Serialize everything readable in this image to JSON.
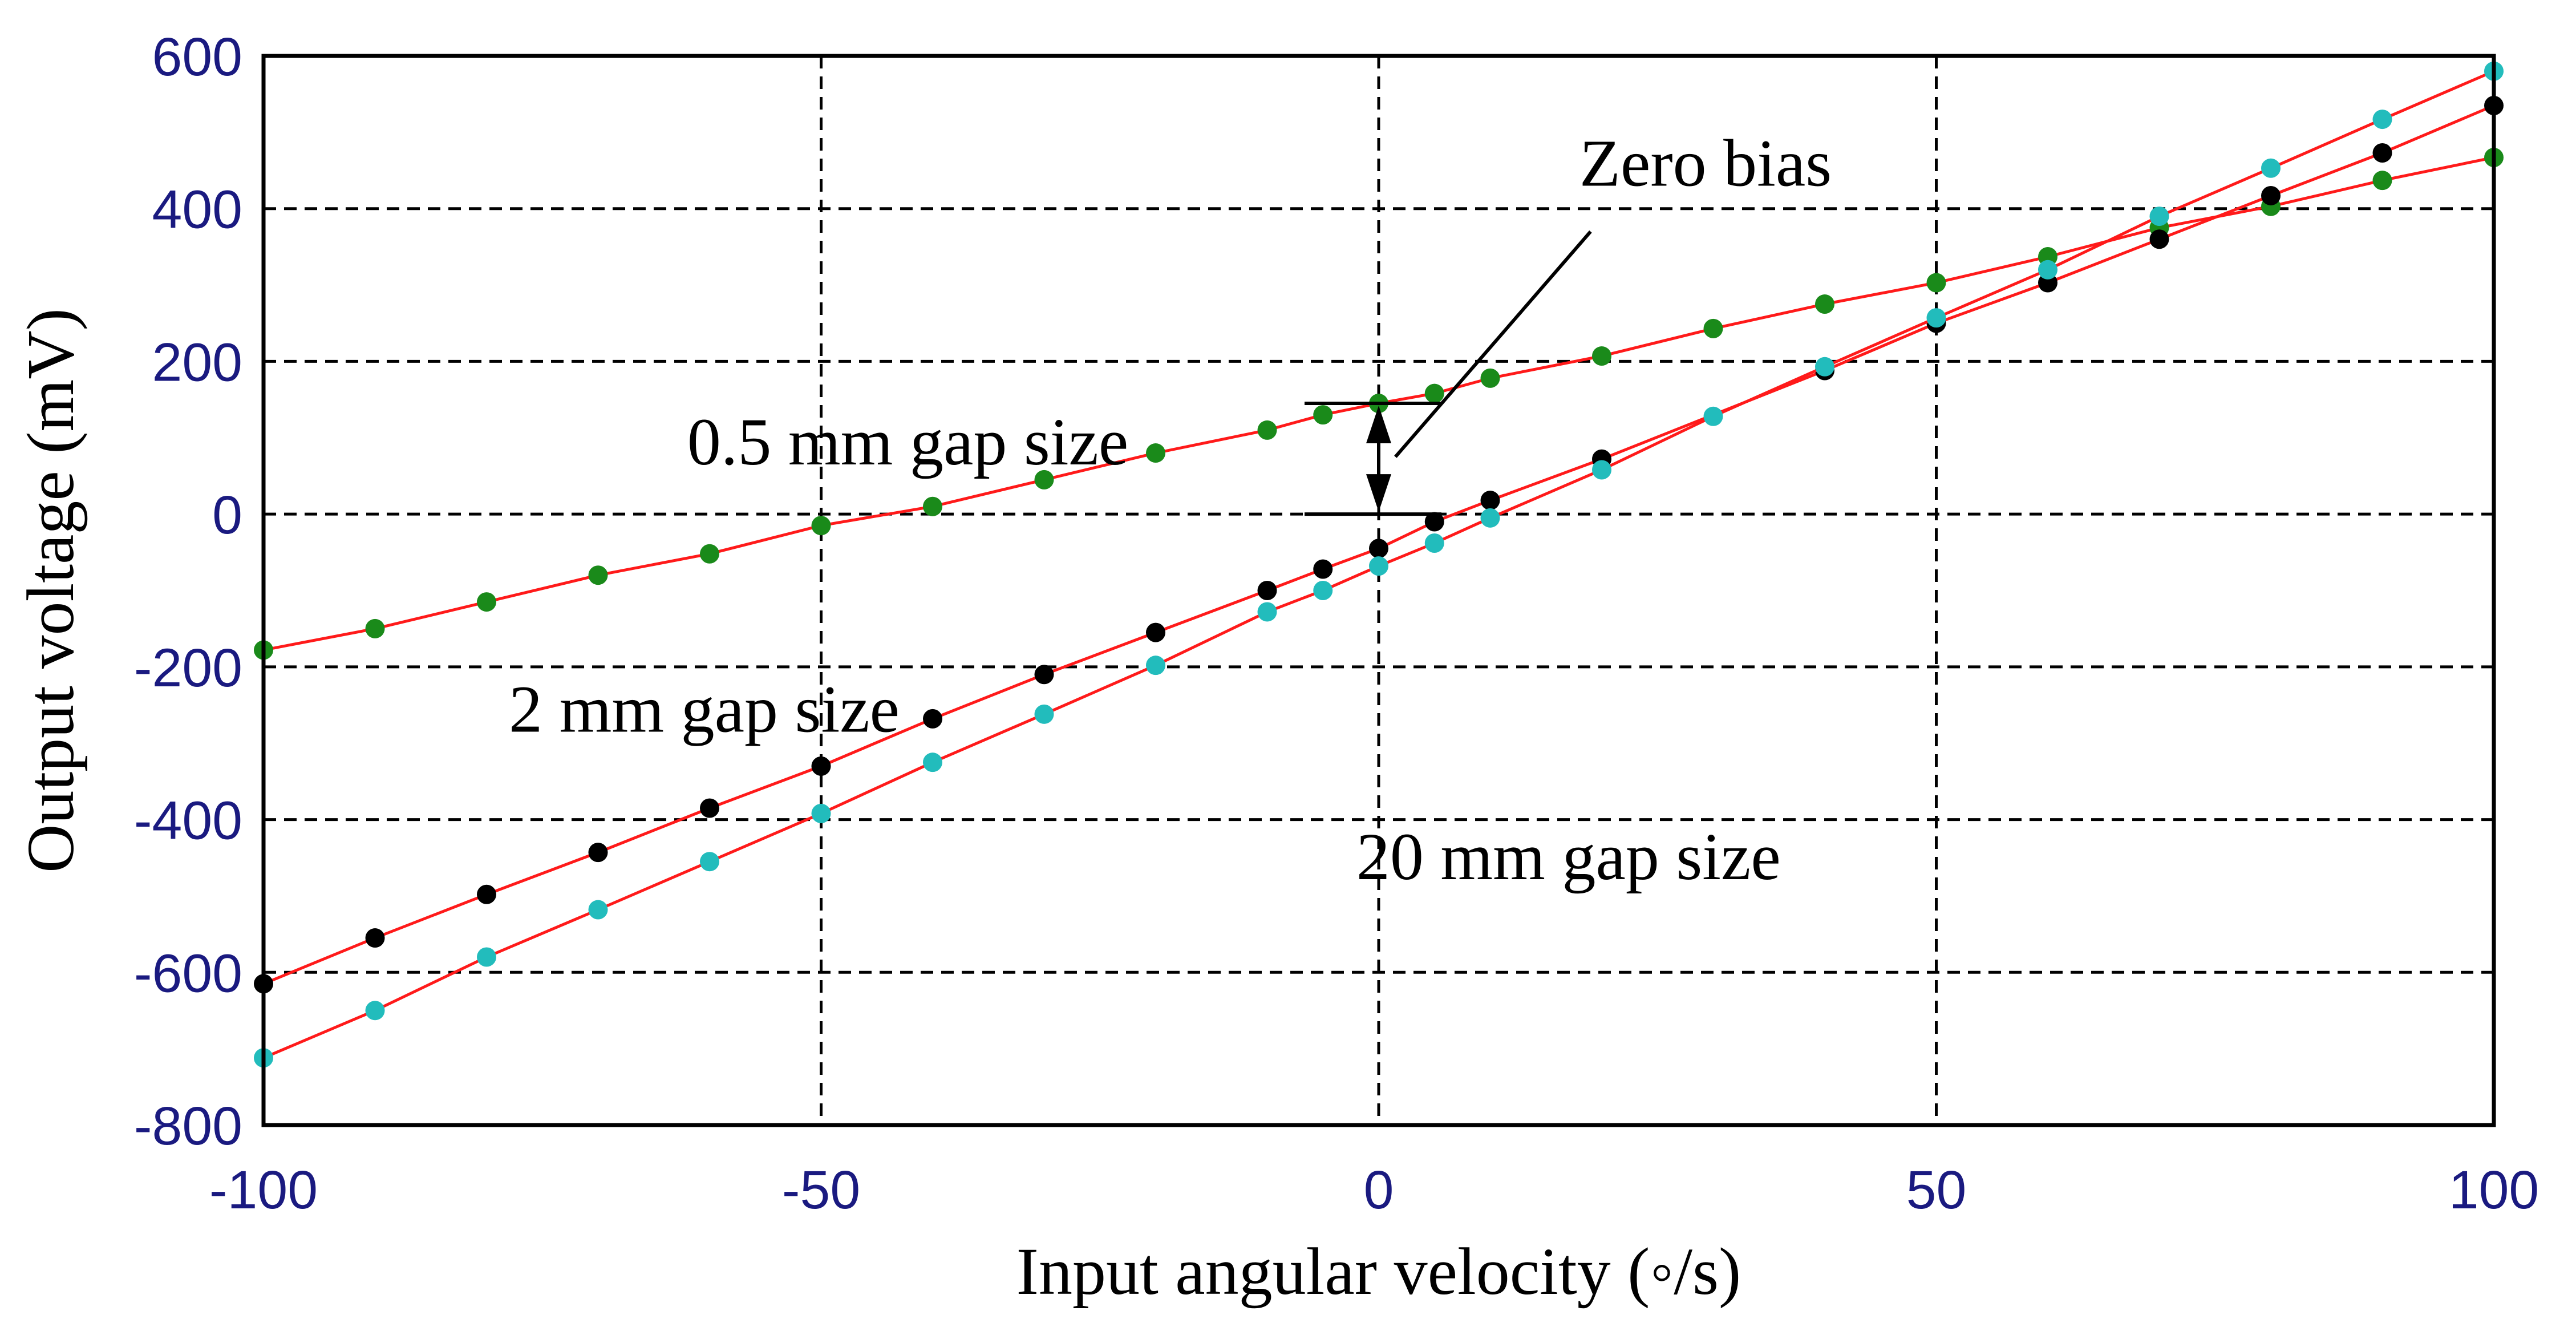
{
  "chart_data": {
    "type": "line",
    "title": "",
    "xlabel": "Input angular velocity (◦/s)",
    "ylabel": "Output voltage (mV)",
    "xlim": [
      -100,
      100
    ],
    "ylim": [
      -800,
      600
    ],
    "xticks": [
      -100,
      -50,
      0,
      50,
      100
    ],
    "yticks": [
      -800,
      -600,
      -400,
      -200,
      0,
      200,
      400,
      600
    ],
    "grid": true,
    "line_color": "#ff1a1a",
    "series": [
      {
        "name": "0.5 mm gap size",
        "marker_color": "#1a8a1a",
        "points": [
          [
            -100,
            -178
          ],
          [
            -90,
            -150
          ],
          [
            -80,
            -115
          ],
          [
            -70,
            -80
          ],
          [
            -60,
            -52
          ],
          [
            -50,
            -15
          ],
          [
            -40,
            10
          ],
          [
            -30,
            45
          ],
          [
            -20,
            80
          ],
          [
            -10,
            110
          ],
          [
            -5,
            130
          ],
          [
            0,
            145
          ],
          [
            5,
            158
          ],
          [
            10,
            178
          ],
          [
            20,
            207
          ],
          [
            30,
            243
          ],
          [
            40,
            275
          ],
          [
            50,
            303
          ],
          [
            60,
            337
          ],
          [
            70,
            375
          ],
          [
            80,
            403
          ],
          [
            90,
            437
          ],
          [
            100,
            467
          ]
        ]
      },
      {
        "name": "2 mm gap size",
        "marker_color": "#000000",
        "points": [
          [
            -100,
            -615
          ],
          [
            -90,
            -555
          ],
          [
            -80,
            -498
          ],
          [
            -70,
            -443
          ],
          [
            -60,
            -385
          ],
          [
            -50,
            -330
          ],
          [
            -40,
            -268
          ],
          [
            -30,
            -210
          ],
          [
            -20,
            -155
          ],
          [
            -10,
            -100
          ],
          [
            -5,
            -72
          ],
          [
            0,
            -45
          ],
          [
            5,
            -10
          ],
          [
            10,
            18
          ],
          [
            20,
            72
          ],
          [
            40,
            188
          ],
          [
            50,
            250
          ],
          [
            60,
            303
          ],
          [
            70,
            360
          ],
          [
            80,
            417
          ],
          [
            90,
            473
          ],
          [
            100,
            535
          ]
        ]
      },
      {
        "name": "20 mm gap size",
        "marker_color": "#22bcbc",
        "points": [
          [
            -100,
            -712
          ],
          [
            -90,
            -650
          ],
          [
            -80,
            -580
          ],
          [
            -70,
            -518
          ],
          [
            -60,
            -455
          ],
          [
            -50,
            -392
          ],
          [
            -40,
            -325
          ],
          [
            -30,
            -262
          ],
          [
            -20,
            -198
          ],
          [
            -10,
            -128
          ],
          [
            -5,
            -100
          ],
          [
            0,
            -68
          ],
          [
            5,
            -38
          ],
          [
            10,
            -5
          ],
          [
            20,
            58
          ],
          [
            30,
            128
          ],
          [
            40,
            193
          ],
          [
            50,
            257
          ],
          [
            60,
            320
          ],
          [
            70,
            390
          ],
          [
            80,
            453
          ],
          [
            90,
            517
          ],
          [
            100,
            580
          ]
        ]
      }
    ],
    "annotations": [
      {
        "text": "Zero bias",
        "x": 18,
        "y": 430
      },
      {
        "text": "0.5 mm gap size",
        "x": -62,
        "y": 65
      },
      {
        "text": "2 mm gap size",
        "x": -78,
        "y": -285
      },
      {
        "text": "20 mm gap size",
        "x": -2,
        "y": -478
      }
    ],
    "zero_bias_marker": {
      "x": 0,
      "y_top": 145,
      "y_bottom": 0,
      "pointer_from": [
        19,
        370
      ],
      "pointer_to": [
        1.5,
        75
      ]
    }
  }
}
